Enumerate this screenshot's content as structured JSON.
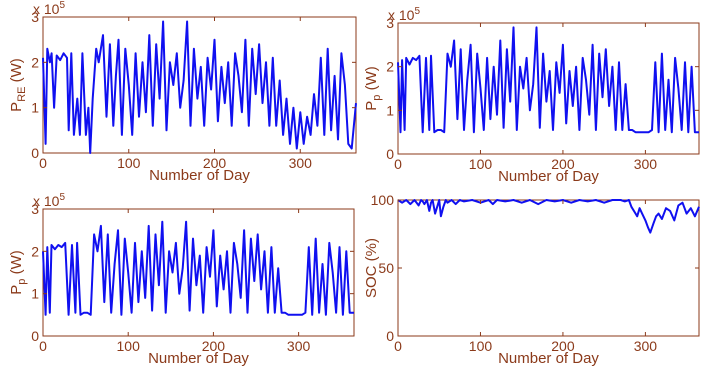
{
  "colors": {
    "axis": "#8B3A1A",
    "text": "#8B3A1A",
    "line": "#1010F0",
    "background": "#FFFFFF"
  },
  "chart_data": [
    {
      "type": "line",
      "xlabel": "Number of Day",
      "ylabel_main": "P",
      "ylabel_sub": "RE",
      "ylabel_unit": " (W)",
      "scale_label": "x 10",
      "scale_exponent": "5",
      "xlim": [
        0,
        365
      ],
      "ylim": [
        0,
        300000
      ],
      "xticks": [
        0,
        100,
        200,
        300
      ],
      "xtick_labels": [
        "0",
        "100",
        "200",
        "300"
      ],
      "yticks": [
        0,
        100000,
        200000,
        300000
      ],
      "ytick_labels": [
        "0",
        "1",
        "2",
        "3"
      ],
      "series": [
        {
          "x": [
            0,
            3,
            5,
            8,
            10,
            13,
            16,
            20,
            24,
            28,
            30,
            33,
            36,
            40,
            43,
            46,
            50,
            53,
            55,
            58,
            62,
            65,
            70,
            74,
            78,
            82,
            85,
            88,
            92,
            96,
            100,
            104,
            108,
            112,
            116,
            120,
            124,
            128,
            132,
            136,
            140,
            144,
            148,
            152,
            156,
            160,
            164,
            168,
            172,
            176,
            180,
            184,
            188,
            192,
            196,
            200,
            204,
            208,
            212,
            216,
            220,
            224,
            228,
            232,
            236,
            240,
            244,
            248,
            252,
            256,
            260,
            264,
            268,
            272,
            276,
            280,
            284,
            288,
            292,
            296,
            300,
            304,
            308,
            312,
            316,
            320,
            324,
            328,
            332,
            336,
            340,
            344,
            348,
            352,
            356,
            360,
            365
          ],
          "y": [
            210000,
            20000,
            230000,
            200000,
            220000,
            100000,
            215000,
            205000,
            220000,
            210000,
            50000,
            220000,
            40000,
            120000,
            40000,
            220000,
            40000,
            100000,
            0,
            120000,
            230000,
            200000,
            260000,
            80000,
            240000,
            60000,
            170000,
            250000,
            40000,
            230000,
            150000,
            40000,
            220000,
            80000,
            200000,
            90000,
            260000,
            60000,
            240000,
            120000,
            290000,
            50000,
            200000,
            150000,
            220000,
            100000,
            160000,
            290000,
            60000,
            230000,
            120000,
            190000,
            60000,
            210000,
            140000,
            250000,
            70000,
            190000,
            110000,
            200000,
            60000,
            220000,
            170000,
            90000,
            250000,
            60000,
            230000,
            130000,
            240000,
            110000,
            200000,
            60000,
            210000,
            60000,
            160000,
            40000,
            120000,
            20000,
            100000,
            10000,
            90000,
            20000,
            80000,
            40000,
            130000,
            60000,
            210000,
            40000,
            230000,
            50000,
            170000,
            30000,
            220000,
            150000,
            20000,
            10000,
            110000
          ]
        }
      ]
    },
    {
      "type": "line",
      "xlabel": "Number of Day",
      "ylabel_main": "P",
      "ylabel_sub": "p",
      "ylabel_unit": " (W)",
      "scale_label": "x 10",
      "scale_exponent": "5",
      "xlim": [
        0,
        365
      ],
      "ylim": [
        0,
        300000
      ],
      "xticks": [
        0,
        100,
        200,
        300
      ],
      "xtick_labels": [
        "0",
        "100",
        "200",
        "300"
      ],
      "yticks": [
        0,
        100000,
        200000,
        300000
      ],
      "ytick_labels": [
        "0",
        "1",
        "2",
        "3"
      ],
      "series": [
        {
          "x": [
            0,
            3,
            5,
            8,
            10,
            14,
            18,
            22,
            26,
            30,
            34,
            38,
            40,
            44,
            48,
            52,
            56,
            60,
            64,
            68,
            72,
            76,
            80,
            84,
            88,
            92,
            96,
            100,
            104,
            108,
            112,
            116,
            120,
            124,
            128,
            132,
            136,
            140,
            144,
            148,
            152,
            156,
            160,
            164,
            168,
            172,
            176,
            180,
            184,
            188,
            192,
            196,
            200,
            204,
            208,
            212,
            216,
            220,
            224,
            228,
            232,
            236,
            240,
            244,
            248,
            252,
            256,
            260,
            264,
            268,
            272,
            276,
            280,
            284,
            288,
            292,
            296,
            300,
            304,
            308,
            312,
            316,
            320,
            324,
            328,
            332,
            336,
            340,
            344,
            348,
            352,
            356,
            360,
            365
          ],
          "y": [
            210000,
            50000,
            215000,
            55000,
            220000,
            205000,
            220000,
            215000,
            225000,
            50000,
            220000,
            55000,
            225000,
            50000,
            55000,
            55000,
            50000,
            230000,
            200000,
            260000,
            80000,
            240000,
            55000,
            170000,
            250000,
            50000,
            230000,
            150000,
            55000,
            220000,
            80000,
            200000,
            90000,
            260000,
            60000,
            240000,
            120000,
            290000,
            55000,
            200000,
            150000,
            220000,
            100000,
            160000,
            290000,
            60000,
            230000,
            120000,
            190000,
            55000,
            210000,
            140000,
            250000,
            70000,
            190000,
            110000,
            200000,
            55000,
            220000,
            170000,
            90000,
            250000,
            55000,
            230000,
            130000,
            240000,
            110000,
            200000,
            55000,
            210000,
            55000,
            160000,
            55000,
            55000,
            50000,
            50000,
            50000,
            50000,
            50000,
            55000,
            210000,
            50000,
            230000,
            55000,
            170000,
            50000,
            220000,
            150000,
            55000,
            210000,
            50000,
            200000,
            50000,
            50000
          ]
        }
      ]
    },
    {
      "type": "line",
      "xlabel": "Number of Day",
      "ylabel_main": "P",
      "ylabel_sub": "p",
      "ylabel_unit": " (W)",
      "scale_label": "x 10",
      "scale_exponent": "5",
      "xlim": [
        0,
        365
      ],
      "ylim": [
        0,
        300000
      ],
      "xticks": [
        0,
        100,
        200,
        300
      ],
      "xtick_labels": [
        "0",
        "100",
        "200",
        "300"
      ],
      "yticks": [
        0,
        100000,
        200000,
        300000
      ],
      "ytick_labels": [
        "0",
        "1",
        "2",
        "3"
      ],
      "series": [
        {
          "x": [
            0,
            3,
            5,
            8,
            10,
            14,
            18,
            22,
            26,
            30,
            34,
            38,
            40,
            44,
            48,
            52,
            56,
            60,
            64,
            68,
            72,
            76,
            80,
            84,
            88,
            92,
            96,
            100,
            104,
            108,
            112,
            116,
            120,
            124,
            128,
            132,
            136,
            140,
            144,
            148,
            152,
            156,
            160,
            164,
            168,
            172,
            176,
            180,
            184,
            188,
            192,
            196,
            200,
            204,
            208,
            212,
            216,
            220,
            224,
            228,
            232,
            236,
            240,
            244,
            248,
            252,
            256,
            260,
            264,
            268,
            272,
            276,
            280,
            284,
            288,
            292,
            296,
            300,
            304,
            308,
            312,
            316,
            320,
            324,
            328,
            332,
            336,
            340,
            344,
            348,
            352,
            356,
            360,
            365
          ],
          "y": [
            200000,
            50000,
            210000,
            55000,
            215000,
            205000,
            215000,
            210000,
            220000,
            50000,
            215000,
            55000,
            220000,
            50000,
            55000,
            55000,
            50000,
            240000,
            200000,
            260000,
            80000,
            240000,
            55000,
            170000,
            250000,
            50000,
            230000,
            150000,
            55000,
            220000,
            80000,
            200000,
            90000,
            260000,
            60000,
            240000,
            120000,
            270000,
            55000,
            200000,
            150000,
            220000,
            100000,
            160000,
            270000,
            60000,
            230000,
            120000,
            190000,
            55000,
            210000,
            140000,
            250000,
            70000,
            190000,
            110000,
            200000,
            55000,
            220000,
            170000,
            90000,
            250000,
            55000,
            230000,
            130000,
            240000,
            110000,
            200000,
            55000,
            210000,
            55000,
            160000,
            55000,
            55000,
            50000,
            50000,
            50000,
            50000,
            50000,
            55000,
            210000,
            50000,
            230000,
            55000,
            170000,
            50000,
            220000,
            150000,
            55000,
            210000,
            50000,
            200000,
            55000,
            55000
          ]
        }
      ]
    },
    {
      "type": "line",
      "xlabel": "Number of Day",
      "ylabel_main": "SOC (%)",
      "ylabel_sub": "",
      "ylabel_unit": "",
      "scale_label": "",
      "scale_exponent": "",
      "xlim": [
        0,
        365
      ],
      "ylim": [
        0,
        100
      ],
      "xticks": [
        0,
        100,
        200,
        300
      ],
      "xtick_labels": [
        "0",
        "100",
        "200",
        "300"
      ],
      "yticks": [
        0,
        50,
        100
      ],
      "ytick_labels": [
        "0",
        "50",
        "100"
      ],
      "series": [
        {
          "x": [
            0,
            5,
            10,
            15,
            20,
            25,
            28,
            30,
            32,
            35,
            38,
            40,
            42,
            45,
            48,
            50,
            52,
            55,
            58,
            60,
            65,
            70,
            75,
            80,
            90,
            100,
            110,
            115,
            120,
            130,
            140,
            150,
            160,
            170,
            180,
            190,
            200,
            210,
            220,
            230,
            240,
            250,
            260,
            270,
            275,
            280,
            283,
            286,
            290,
            293,
            296,
            300,
            303,
            306,
            310,
            313,
            316,
            320,
            325,
            330,
            335,
            340,
            345,
            350,
            355,
            360,
            365
          ],
          "y": [
            100,
            98,
            100,
            97,
            100,
            96,
            100,
            99,
            97,
            100,
            92,
            98,
            100,
            90,
            96,
            100,
            88,
            95,
            100,
            98,
            100,
            97,
            100,
            99,
            100,
            98,
            100,
            97,
            100,
            99,
            100,
            98,
            100,
            97,
            100,
            99,
            100,
            98,
            100,
            99,
            100,
            98,
            100,
            100,
            99,
            100,
            95,
            92,
            88,
            94,
            90,
            85,
            80,
            76,
            83,
            88,
            90,
            86,
            94,
            92,
            85,
            96,
            98,
            90,
            94,
            88,
            95
          ]
        }
      ]
    }
  ]
}
